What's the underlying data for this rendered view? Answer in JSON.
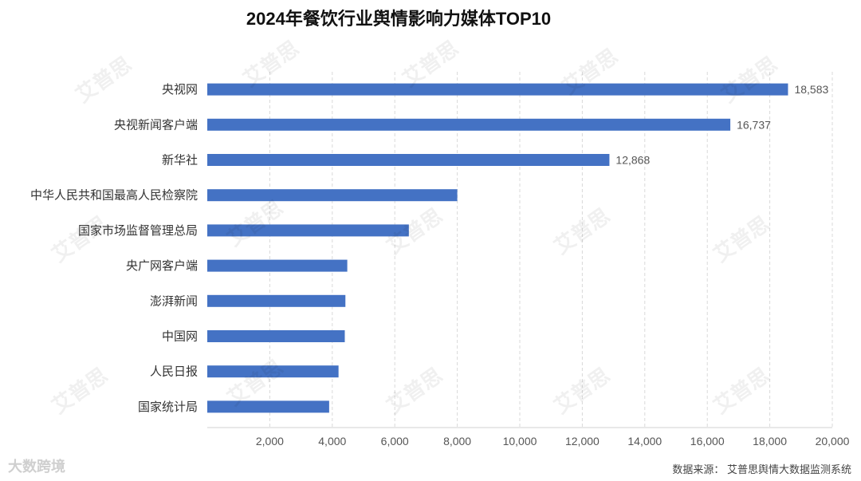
{
  "chart_data": {
    "type": "bar",
    "orientation": "horizontal",
    "title": "2024年餐饮行业舆情影响力媒体TOP10",
    "categories": [
      "央视网",
      "央视新闻客户端",
      "新华社",
      "中华人民共和国最高人民检察院",
      "国家市场监督管理总局",
      "央广网客户端",
      "澎湃新闻",
      "中国网",
      "人民日报",
      "国家统计局"
    ],
    "values": [
      18583,
      16737,
      12868,
      8000,
      6450,
      4480,
      4420,
      4400,
      4200,
      3900
    ],
    "value_labels": [
      "18,583",
      "16,737",
      "12,868",
      "",
      "",
      "",
      "",
      "",
      "",
      ""
    ],
    "xlim": [
      0,
      20000
    ],
    "x_ticks": [
      "2,000",
      "4,000",
      "6,000",
      "8,000",
      "10,000",
      "12,000",
      "14,000",
      "16,000",
      "18,000",
      "20,000"
    ],
    "x_tick_values": [
      2000,
      4000,
      6000,
      8000,
      10000,
      12000,
      14000,
      16000,
      18000,
      20000
    ],
    "grid": true,
    "bar_color": "#4472C4"
  },
  "footer": {
    "source": "数据来源：   艾普思舆情大数据监测系统",
    "brand": "大数跨境"
  },
  "watermark": {
    "text": "艾普思"
  }
}
